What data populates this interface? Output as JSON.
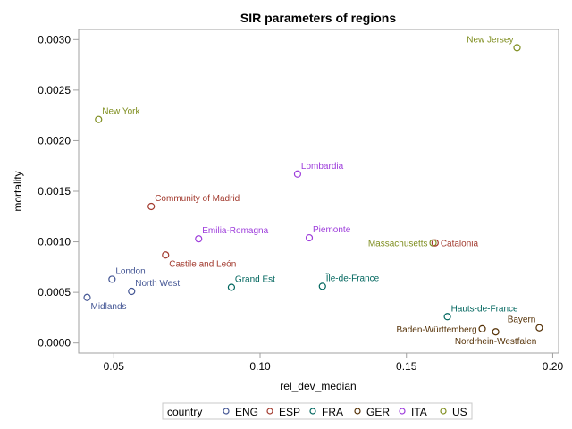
{
  "chart_data": {
    "type": "scatter",
    "title": "SIR parameters of regions",
    "xlabel": "rel_dev_median",
    "ylabel": "mortality",
    "xlim": [
      0.038,
      0.202
    ],
    "ylim": [
      -0.0001,
      0.0031
    ],
    "xticks": [
      0.05,
      0.1,
      0.15,
      0.2
    ],
    "xtick_labels": [
      "0.05",
      "0.10",
      "0.15",
      "0.20"
    ],
    "yticks": [
      0,
      0.0005,
      0.001,
      0.0015,
      0.002,
      0.0025,
      0.003
    ],
    "ytick_labels": [
      "0.0000",
      "0.0005",
      "0.0010",
      "0.0015",
      "0.0020",
      "0.0025",
      "0.0030"
    ],
    "grid": false,
    "legend": {
      "title": "country",
      "placement": "bottom",
      "entries": [
        {
          "name": "ENG",
          "color": "#445694"
        },
        {
          "name": "ESP",
          "color": "#A23A2E"
        },
        {
          "name": "FRA",
          "color": "#01665E"
        },
        {
          "name": "GER",
          "color": "#543005"
        },
        {
          "name": "ITA",
          "color": "#9D3CDB"
        },
        {
          "name": "US",
          "color": "#7F8E1F"
        }
      ]
    },
    "points": [
      {
        "label": "New Jersey",
        "group": "US",
        "x": 0.1878,
        "y": 0.00292,
        "anchor": "nw"
      },
      {
        "label": "New York",
        "group": "US",
        "x": 0.0448,
        "y": 0.00221,
        "anchor": "ne"
      },
      {
        "label": "Lombardia",
        "group": "ITA",
        "x": 0.1128,
        "y": 0.00167,
        "anchor": "ne"
      },
      {
        "label": "Community of Madrid",
        "group": "ESP",
        "x": 0.0628,
        "y": 0.00135,
        "anchor": "ne"
      },
      {
        "label": "Emilia-Romagna",
        "group": "ITA",
        "x": 0.079,
        "y": 0.00103,
        "anchor": "ne"
      },
      {
        "label": "Piemonte",
        "group": "ITA",
        "x": 0.1168,
        "y": 0.00104,
        "anchor": "ne"
      },
      {
        "label": "Massachusetts",
        "group": "US",
        "x": 0.1591,
        "y": 0.00099,
        "anchor": "w"
      },
      {
        "label": "Catalonia",
        "group": "ESP",
        "x": 0.1598,
        "y": 0.00099,
        "anchor": "e"
      },
      {
        "label": "Castile and León",
        "group": "ESP",
        "x": 0.0677,
        "y": 0.00087,
        "anchor": "se"
      },
      {
        "label": "London",
        "group": "ENG",
        "x": 0.0494,
        "y": 0.00063,
        "anchor": "ne"
      },
      {
        "label": "North West",
        "group": "ENG",
        "x": 0.0561,
        "y": 0.00051,
        "anchor": "ne"
      },
      {
        "label": "Midlands",
        "group": "ENG",
        "x": 0.0409,
        "y": 0.00045,
        "anchor": "se"
      },
      {
        "label": "Grand Est",
        "group": "FRA",
        "x": 0.0902,
        "y": 0.00055,
        "anchor": "ne"
      },
      {
        "label": "Île-de-France",
        "group": "FRA",
        "x": 0.1213,
        "y": 0.00056,
        "anchor": "ne"
      },
      {
        "label": "Hauts-de-France",
        "group": "FRA",
        "x": 0.164,
        "y": 0.00026,
        "anchor": "ne"
      },
      {
        "label": "Baden-Württemberg",
        "group": "GER",
        "x": 0.1759,
        "y": 0.00014,
        "anchor": "w"
      },
      {
        "label": "Nordrhein-Westfalen",
        "group": "GER",
        "x": 0.1805,
        "y": 0.00011,
        "anchor": "s"
      },
      {
        "label": "Bayern",
        "group": "GER",
        "x": 0.1954,
        "y": 0.00015,
        "anchor": "nw"
      }
    ]
  }
}
